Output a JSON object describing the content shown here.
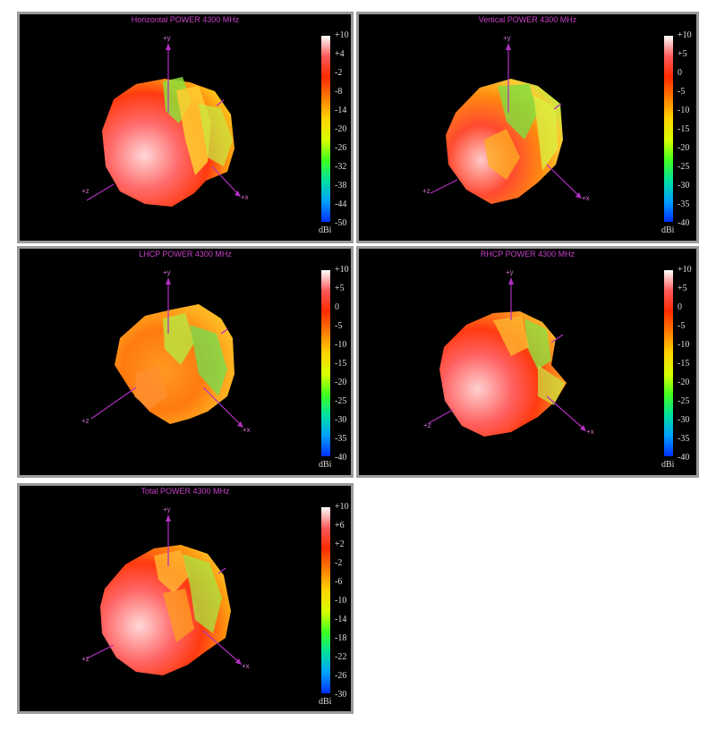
{
  "panels": [
    {
      "title": "Horizontal POWER 4300  MHz",
      "ticks": [
        "+10",
        "+4",
        "-2",
        "-8",
        "-14",
        "-20",
        "-26",
        "-32",
        "-38",
        "-44",
        "-50"
      ],
      "unit": "dBi",
      "axes": {
        "y": "+y",
        "z": "+z",
        "x": "+x"
      }
    },
    {
      "title": "Vertical POWER 4300  MHz",
      "ticks": [
        "+10",
        "+5",
        "0",
        "-5",
        "-10",
        "-15",
        "-20",
        "-25",
        "-30",
        "-35",
        "-40"
      ],
      "unit": "dBi",
      "axes": {
        "y": "+y",
        "z": "+z",
        "x": "+x"
      }
    },
    {
      "title": "LHCP POWER 4300  MHz",
      "ticks": [
        "+10",
        "+5",
        "0",
        "-5",
        "-10",
        "-15",
        "-20",
        "-25",
        "-30",
        "-35",
        "-40"
      ],
      "unit": "dBi",
      "axes": {
        "y": "+y",
        "z": "+z",
        "x": "+x"
      }
    },
    {
      "title": "RHCP POWER 4300  MHz",
      "ticks": [
        "+10",
        "+5",
        "0",
        "-5",
        "-10",
        "-15",
        "-20",
        "-25",
        "-30",
        "-35",
        "-40"
      ],
      "unit": "dBi",
      "axes": {
        "y": "+y",
        "z": "+z",
        "x": "+x"
      }
    },
    {
      "title": "Total POWER 4300  MHz",
      "ticks": [
        "+10",
        "+6",
        "+2",
        "-2",
        "-6",
        "-10",
        "-14",
        "-18",
        "-22",
        "-26",
        "-30"
      ],
      "unit": "dBi",
      "axes": {
        "y": "+y",
        "z": "+z",
        "x": "+x"
      }
    }
  ],
  "colors": {
    "title": "#c640c6",
    "axis": "#b030c0",
    "scale": [
      "#ffffff",
      "#ff5a5a",
      "#ff2a00",
      "#ff7a00",
      "#ffd000",
      "#d8ff00",
      "#40ff20",
      "#00e0a0",
      "#00a0ff",
      "#0030ff"
    ]
  }
}
